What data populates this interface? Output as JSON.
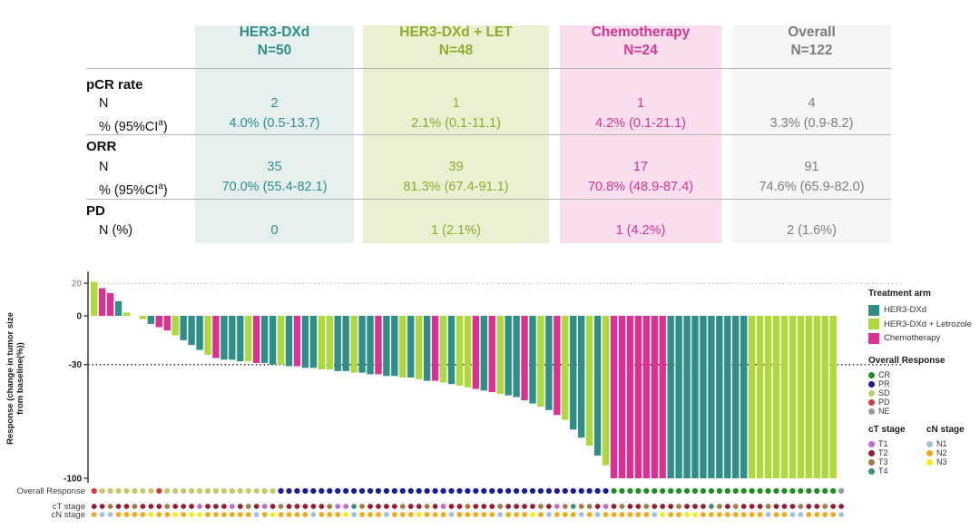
{
  "table": {
    "columns": [
      {
        "line1": "HER3-DXd",
        "line2": "N=50",
        "color": "#2E8F89",
        "bg": "#E6F0EF"
      },
      {
        "line1": "HER3-DXd + LET",
        "line2": "N=48",
        "color": "#8FAD2C",
        "bg": "#E9F1D2"
      },
      {
        "line1": "Chemotherapy",
        "line2": "N=24",
        "color": "#D6368F",
        "bg": "#FADEEE"
      },
      {
        "line1": "Overall",
        "line2": "N=122",
        "color": "#7D7D7D",
        "bg": "#F6F6F6"
      }
    ],
    "sections": [
      {
        "title": "pCR rate",
        "rows": [
          {
            "label": "N",
            "values": [
              "2",
              "1",
              "1",
              "4"
            ]
          },
          {
            "label_pre": "% (95%CI",
            "label_sup": "a",
            "label_post": ")",
            "values": [
              "4.0% (0.5-13.7)",
              "2.1% (0.1-11.1)",
              "4.2% (0.1-21.1)",
              "3.3% (0.9-8.2)"
            ]
          }
        ]
      },
      {
        "title": "ORR",
        "rows": [
          {
            "label": "N",
            "values": [
              "35",
              "39",
              "17",
              "91"
            ]
          },
          {
            "label_pre": "% (95%CI",
            "label_sup": "a",
            "label_post": ")",
            "values": [
              "70.0% (55.4-82.1)",
              "81.3% (67.4-91.1)",
              "70.8% (48.9-87.4)",
              "74.6% (65.9-82.0)"
            ]
          }
        ]
      },
      {
        "title": "PD",
        "rows": [
          {
            "label": "N (%)",
            "values": [
              "0",
              "1 (2.1%)",
              "1 (4.2%)",
              "2 (1.6%)"
            ]
          }
        ]
      }
    ]
  },
  "chart_data": {
    "type": "bar",
    "subtype": "waterfall",
    "title": "",
    "xlabel": "",
    "ylabel_line1": "Response (change in tumor size",
    "ylabel_line2": "from baseline(%))",
    "ylim": [
      -100,
      25
    ],
    "yticks": [
      20,
      0,
      -30,
      -100
    ],
    "gridlines": [
      {
        "y": 20,
        "color": "#c6c6c6"
      },
      {
        "y": -30,
        "color": "#2b2b2b"
      }
    ],
    "row_labels": [
      "Overall Response",
      "cT stage",
      "cN stage"
    ],
    "arm_colors": {
      "dxd": "#2E8F89",
      "let": "#AFD93B",
      "chemo": "#DE2F92"
    },
    "response_colors": {
      "CR": "#1E8F1E",
      "PR": "#1A1A9C",
      "SD": "#C5C96B",
      "PD": "#D23B3B",
      "NE": "#9A9A9A"
    },
    "ct_colors": {
      "T1": "#C468D4",
      "T2": "#9A1B30",
      "T3": "#A5793F",
      "T4": "#3D8E7A"
    },
    "cn_colors": {
      "N1": "#9DC3DB",
      "N2": "#F4A814",
      "N3": "#F7EC13"
    },
    "values": [
      21,
      17,
      14,
      9,
      2,
      0,
      -2,
      -5,
      -7,
      -9,
      -12,
      -15,
      -18,
      -21,
      -24,
      -26,
      -27,
      -27,
      -28,
      -28,
      -29,
      -29,
      -30,
      -30,
      -31,
      -31,
      -32,
      -32,
      -33,
      -33,
      -34,
      -34,
      -35,
      -35,
      -36,
      -36,
      -37,
      -37,
      -38,
      -38,
      -39,
      -40,
      -40,
      -41,
      -42,
      -43,
      -44,
      -45,
      -46,
      -47,
      -48,
      -49,
      -50,
      -52,
      -54,
      -56,
      -58,
      -61,
      -64,
      -70,
      -75,
      -80,
      -86,
      -92,
      -100,
      -100,
      -100,
      -100,
      -100,
      -100,
      -100,
      -100,
      -100,
      -100,
      -100,
      -100,
      -100,
      -100,
      -100,
      -100,
      -100,
      -100,
      -100,
      -100,
      -100,
      -100,
      -100,
      -100,
      -100,
      -100,
      -100,
      -100,
      null
    ],
    "arms": [
      "let",
      "chemo",
      "chemo",
      "dxd",
      "let",
      "none",
      "let",
      "dxd",
      "chemo",
      "chemo",
      "let",
      "dxd",
      "dxd",
      "dxd",
      "let",
      "chemo",
      "dxd",
      "dxd",
      "dxd",
      "let",
      "chemo",
      "dxd",
      "dxd",
      "let",
      "dxd",
      "chemo",
      "dxd",
      "dxd",
      "let",
      "let",
      "dxd",
      "dxd",
      "let",
      "dxd",
      "dxd",
      "chemo",
      "dxd",
      "dxd",
      "let",
      "dxd",
      "let",
      "dxd",
      "chemo",
      "let",
      "dxd",
      "let",
      "let",
      "chemo",
      "dxd",
      "chemo",
      "let",
      "dxd",
      "dxd",
      "chemo",
      "dxd",
      "let",
      "dxd",
      "chemo",
      "let",
      "dxd",
      "dxd",
      "let",
      "dxd",
      "let",
      "chemo",
      "chemo",
      "chemo",
      "chemo",
      "chemo",
      "chemo",
      "chemo",
      "dxd",
      "dxd",
      "dxd",
      "dxd",
      "dxd",
      "dxd",
      "dxd",
      "dxd",
      "dxd",
      "dxd",
      "let",
      "let",
      "let",
      "let",
      "let",
      "let",
      "let",
      "let",
      "let",
      "let",
      "let",
      "none"
    ],
    "response": [
      "PD",
      "SD",
      "SD",
      "SD",
      "SD",
      "SD",
      "SD",
      "SD",
      "PD",
      "SD",
      "SD",
      "SD",
      "SD",
      "SD",
      "SD",
      "SD",
      "SD",
      "SD",
      "SD",
      "SD",
      "SD",
      "SD",
      "SD",
      "PR",
      "PR",
      "PR",
      "PR",
      "PR",
      "PR",
      "PR",
      "PR",
      "PR",
      "PR",
      "PR",
      "PR",
      "PR",
      "PR",
      "PR",
      "PR",
      "PR",
      "PR",
      "PR",
      "PR",
      "PR",
      "PR",
      "PR",
      "PR",
      "PR",
      "PR",
      "PR",
      "PR",
      "PR",
      "PR",
      "PR",
      "PR",
      "PR",
      "PR",
      "PR",
      "PR",
      "PR",
      "PR",
      "PR",
      "PR",
      "PR",
      "CR",
      "CR",
      "CR",
      "CR",
      "CR",
      "CR",
      "CR",
      "CR",
      "CR",
      "CR",
      "CR",
      "CR",
      "CR",
      "CR",
      "CR",
      "CR",
      "CR",
      "CR",
      "CR",
      "CR",
      "CR",
      "CR",
      "CR",
      "CR",
      "CR",
      "CR",
      "CR",
      "CR",
      "NE"
    ],
    "ct": [
      "T2",
      "T2",
      "T3",
      "T2",
      "T2",
      "T3",
      "T2",
      "T2",
      "T2",
      "T3",
      "T2",
      "T2",
      "T2",
      "T1",
      "T2",
      "T2",
      "T2",
      "T1",
      "T2",
      "T3",
      "T2",
      "T1",
      "T2",
      "T3",
      "T2",
      "T2",
      "T2",
      "T2",
      "T2",
      "T3",
      "T1",
      "T1",
      "T4",
      "T3",
      "T2",
      "T2",
      "T2",
      "T2",
      "T3",
      "T2",
      "T2",
      "T3",
      "T2",
      "T1",
      "T2",
      "T2",
      "T3",
      "T2",
      "T2",
      "T2",
      "T3",
      "T2",
      "T2",
      "T2",
      "T2",
      "T3",
      "T2",
      "T1",
      "T3",
      "T4",
      "T3",
      "T3",
      "T2",
      "T1",
      "T2",
      "T3",
      "T2",
      "T2",
      "T3",
      "T2",
      "T2",
      "T2",
      "T3",
      "T2",
      "T2",
      "T2",
      "T4",
      "T3",
      "T2",
      "T3",
      "T2",
      "T2",
      "T2",
      "T3",
      "T2",
      "T2",
      "T2",
      "T3",
      "T2",
      "T2",
      "T3",
      "T2",
      "T2"
    ],
    "cn": [
      "N2",
      "N1",
      "N1",
      "N2",
      "N2",
      "N2",
      "N2",
      "N3",
      "N2",
      "N2",
      "N3",
      "N2",
      "N3",
      "N3",
      "N2",
      "N2",
      "N2",
      "N2",
      "N2",
      "N2",
      "N1",
      "N2",
      "N3",
      "N2",
      "N2",
      "N2",
      "N2",
      "N1",
      "N2",
      "N2",
      "N2",
      "N3",
      "N1",
      "N2",
      "N2",
      "N2",
      "N1",
      "N2",
      "N2",
      "N2",
      "N3",
      "N2",
      "N2",
      "N2",
      "N1",
      "N2",
      "N2",
      "N2",
      "N2",
      "N2",
      "N1",
      "N2",
      "N2",
      "N2",
      "N3",
      "N2",
      "N1",
      "N2",
      "N2",
      "N2",
      "N1",
      "N2",
      "N1",
      "N2",
      "N2",
      "N2",
      "N2",
      "N2",
      "N2",
      "N1",
      "N3",
      "N2",
      "N2",
      "N3",
      "N3",
      "N2",
      "N2",
      "N2",
      "N2",
      "N2",
      "N2",
      "N2",
      "N2",
      "N1",
      "N2",
      "N2",
      "N1",
      "N1",
      "N2",
      "N2",
      "N2",
      "N2",
      "N1"
    ],
    "legend": {
      "treatment": {
        "title": "Treatment arm",
        "items": [
          "HER3-DXd",
          "HER3-DXd + Letrozole",
          "Chemotherapy"
        ]
      },
      "response": {
        "title": "Overall Response",
        "items": [
          "CR",
          "PR",
          "SD",
          "PD",
          "NE"
        ]
      },
      "ct": {
        "title": "cT stage",
        "items": [
          "T1",
          "T2",
          "T3",
          "T4"
        ]
      },
      "cn": {
        "title": "cN stage",
        "items": [
          "N1",
          "N2",
          "N3"
        ]
      }
    }
  }
}
